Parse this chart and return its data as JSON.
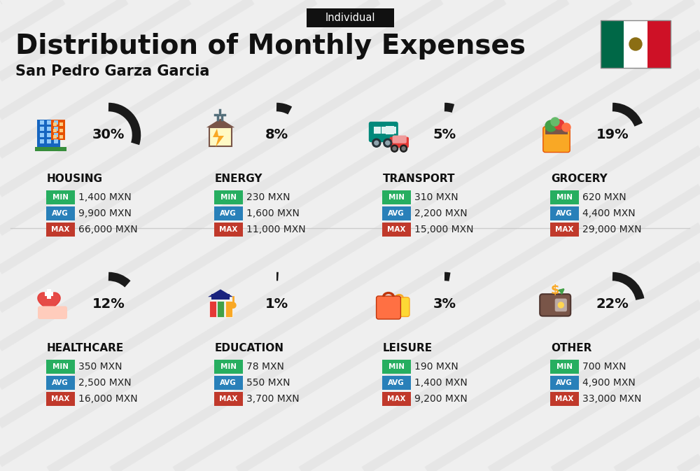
{
  "title": "Distribution of Monthly Expenses",
  "subtitle": "San Pedro Garza Garcia",
  "tag": "Individual",
  "bg_color": "#efefef",
  "categories": [
    {
      "name": "HOUSING",
      "percent": 30,
      "min_val": "1,400 MXN",
      "avg_val": "9,900 MXN",
      "max_val": "66,000 MXN",
      "row": 0,
      "col": 0
    },
    {
      "name": "ENERGY",
      "percent": 8,
      "min_val": "230 MXN",
      "avg_val": "1,600 MXN",
      "max_val": "11,000 MXN",
      "row": 0,
      "col": 1
    },
    {
      "name": "TRANSPORT",
      "percent": 5,
      "min_val": "310 MXN",
      "avg_val": "2,200 MXN",
      "max_val": "15,000 MXN",
      "row": 0,
      "col": 2
    },
    {
      "name": "GROCERY",
      "percent": 19,
      "min_val": "620 MXN",
      "avg_val": "4,400 MXN",
      "max_val": "29,000 MXN",
      "row": 0,
      "col": 3
    },
    {
      "name": "HEALTHCARE",
      "percent": 12,
      "min_val": "350 MXN",
      "avg_val": "2,500 MXN",
      "max_val": "16,000 MXN",
      "row": 1,
      "col": 0
    },
    {
      "name": "EDUCATION",
      "percent": 1,
      "min_val": "78 MXN",
      "avg_val": "550 MXN",
      "max_val": "3,700 MXN",
      "row": 1,
      "col": 1
    },
    {
      "name": "LEISURE",
      "percent": 3,
      "min_val": "190 MXN",
      "avg_val": "1,400 MXN",
      "max_val": "9,200 MXN",
      "row": 1,
      "col": 2
    },
    {
      "name": "OTHER",
      "percent": 22,
      "min_val": "700 MXN",
      "avg_val": "4,900 MXN",
      "max_val": "33,000 MXN",
      "row": 1,
      "col": 3
    }
  ],
  "color_min": "#27ae60",
  "color_avg": "#2980b9",
  "color_max": "#c0392b",
  "stripe_color": "#d8d8d8",
  "arc_bg_color": "#c8c8c8",
  "arc_fg_color": "#1a1a1a",
  "text_dark": "#111111",
  "text_mid": "#333333"
}
